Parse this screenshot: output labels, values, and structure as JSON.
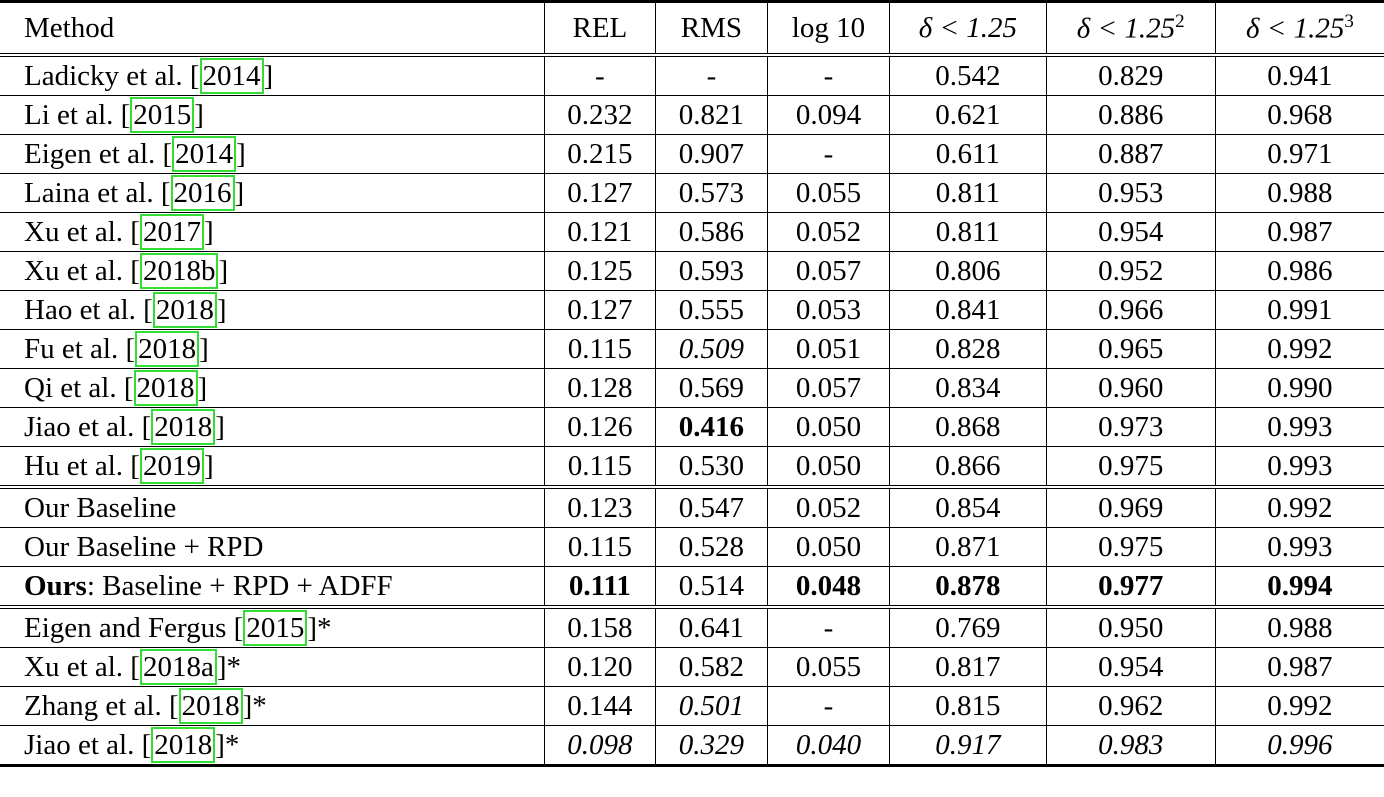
{
  "header": {
    "method": "Method",
    "cols": [
      "REL",
      "RMS",
      "log 10",
      "δ < 1.25",
      "δ < 1.25",
      "δ < 1.25"
    ],
    "sups": [
      "",
      "",
      "",
      "",
      "2",
      "3"
    ]
  },
  "rows": [
    {
      "pre": "",
      "name": "Ladicky et al. [",
      "cite": "2014",
      "post": "]",
      "cells": [
        [
          "-",
          ""
        ],
        [
          "-",
          ""
        ],
        [
          "-",
          ""
        ],
        [
          "0.542",
          ""
        ],
        [
          "0.829",
          ""
        ],
        [
          "0.941",
          ""
        ]
      ]
    },
    {
      "pre": "",
      "name": "Li et al. [",
      "cite": "2015",
      "post": "]",
      "cells": [
        [
          "0.232",
          ""
        ],
        [
          "0.821",
          ""
        ],
        [
          "0.094",
          ""
        ],
        [
          "0.621",
          ""
        ],
        [
          "0.886",
          ""
        ],
        [
          "0.968",
          ""
        ]
      ]
    },
    {
      "pre": "",
      "name": "Eigen et al. [",
      "cite": "2014",
      "post": "]",
      "cells": [
        [
          "0.215",
          ""
        ],
        [
          "0.907",
          ""
        ],
        [
          "-",
          ""
        ],
        [
          "0.611",
          ""
        ],
        [
          "0.887",
          ""
        ],
        [
          "0.971",
          ""
        ]
      ]
    },
    {
      "pre": "",
      "name": "Laina et al. [",
      "cite": "2016",
      "post": "]",
      "cells": [
        [
          "0.127",
          ""
        ],
        [
          "0.573",
          ""
        ],
        [
          "0.055",
          ""
        ],
        [
          "0.811",
          ""
        ],
        [
          "0.953",
          ""
        ],
        [
          "0.988",
          ""
        ]
      ]
    },
    {
      "pre": "",
      "name": "Xu et al. [",
      "cite": "2017",
      "post": "]",
      "cells": [
        [
          "0.121",
          ""
        ],
        [
          "0.586",
          ""
        ],
        [
          "0.052",
          ""
        ],
        [
          "0.811",
          ""
        ],
        [
          "0.954",
          ""
        ],
        [
          "0.987",
          ""
        ]
      ]
    },
    {
      "pre": "",
      "name": "Xu et al. [",
      "cite": "2018b",
      "post": "]",
      "cells": [
        [
          "0.125",
          ""
        ],
        [
          "0.593",
          ""
        ],
        [
          "0.057",
          ""
        ],
        [
          "0.806",
          ""
        ],
        [
          "0.952",
          ""
        ],
        [
          "0.986",
          ""
        ]
      ]
    },
    {
      "pre": "",
      "name": "Hao et al. [",
      "cite": "2018",
      "post": "]",
      "cells": [
        [
          "0.127",
          ""
        ],
        [
          "0.555",
          ""
        ],
        [
          "0.053",
          ""
        ],
        [
          "0.841",
          ""
        ],
        [
          "0.966",
          ""
        ],
        [
          "0.991",
          ""
        ]
      ]
    },
    {
      "pre": "",
      "name": "Fu et al. [",
      "cite": "2018",
      "post": "]",
      "cells": [
        [
          "0.115",
          ""
        ],
        [
          "0.509",
          "i"
        ],
        [
          "0.051",
          ""
        ],
        [
          "0.828",
          ""
        ],
        [
          "0.965",
          ""
        ],
        [
          "0.992",
          ""
        ]
      ]
    },
    {
      "pre": "",
      "name": "Qi et al. [",
      "cite": "2018",
      "post": "]",
      "cells": [
        [
          "0.128",
          ""
        ],
        [
          "0.569",
          ""
        ],
        [
          "0.057",
          ""
        ],
        [
          "0.834",
          ""
        ],
        [
          "0.960",
          ""
        ],
        [
          "0.990",
          ""
        ]
      ]
    },
    {
      "pre": "",
      "name": "Jiao et al. [",
      "cite": "2018",
      "post": "]",
      "cells": [
        [
          "0.126",
          ""
        ],
        [
          "0.416",
          "b"
        ],
        [
          "0.050",
          ""
        ],
        [
          "0.868",
          ""
        ],
        [
          "0.973",
          ""
        ],
        [
          "0.993",
          ""
        ]
      ]
    },
    {
      "pre": "",
      "name": "Hu et al. [",
      "cite": "2019",
      "post": "]",
      "cells": [
        [
          "0.115",
          ""
        ],
        [
          "0.530",
          ""
        ],
        [
          "0.050",
          ""
        ],
        [
          "0.866",
          ""
        ],
        [
          "0.975",
          ""
        ],
        [
          "0.993",
          ""
        ]
      ],
      "gend": true
    },
    {
      "pre": "",
      "name": "Our Baseline",
      "cite": "",
      "post": "",
      "cells": [
        [
          "0.123",
          ""
        ],
        [
          "0.547",
          ""
        ],
        [
          "0.052",
          ""
        ],
        [
          "0.854",
          ""
        ],
        [
          "0.969",
          ""
        ],
        [
          "0.992",
          ""
        ]
      ]
    },
    {
      "pre": "",
      "name": "Our Baseline + RPD",
      "cite": "",
      "post": "",
      "cells": [
        [
          "0.115",
          ""
        ],
        [
          "0.528",
          ""
        ],
        [
          "0.050",
          ""
        ],
        [
          "0.871",
          ""
        ],
        [
          "0.975",
          ""
        ],
        [
          "0.993",
          ""
        ]
      ]
    },
    {
      "pre": "Ours",
      "name": ": Baseline + RPD + ADFF",
      "cite": "",
      "post": "",
      "cells": [
        [
          "0.111",
          "b"
        ],
        [
          "0.514",
          ""
        ],
        [
          "0.048",
          "b"
        ],
        [
          "0.878",
          "b"
        ],
        [
          "0.977",
          "b"
        ],
        [
          "0.994",
          "b"
        ]
      ],
      "gend": true
    },
    {
      "pre": "",
      "name": "Eigen and Fergus [",
      "cite": "2015",
      "post": "]*",
      "cells": [
        [
          "0.158",
          ""
        ],
        [
          "0.641",
          ""
        ],
        [
          "-",
          ""
        ],
        [
          "0.769",
          ""
        ],
        [
          "0.950",
          ""
        ],
        [
          "0.988",
          ""
        ]
      ]
    },
    {
      "pre": "",
      "name": "Xu et al. [",
      "cite": "2018a",
      "post": "]*",
      "cells": [
        [
          "0.120",
          ""
        ],
        [
          "0.582",
          ""
        ],
        [
          "0.055",
          ""
        ],
        [
          "0.817",
          ""
        ],
        [
          "0.954",
          ""
        ],
        [
          "0.987",
          ""
        ]
      ]
    },
    {
      "pre": "",
      "name": "Zhang et al. [",
      "cite": "2018",
      "post": "]*",
      "cells": [
        [
          "0.144",
          ""
        ],
        [
          "0.501",
          "i"
        ],
        [
          "-",
          ""
        ],
        [
          "0.815",
          ""
        ],
        [
          "0.962",
          ""
        ],
        [
          "0.992",
          ""
        ]
      ]
    },
    {
      "pre": "",
      "name": "Jiao et al. [",
      "cite": "2018",
      "post": "]*",
      "cells": [
        [
          "0.098",
          "i"
        ],
        [
          "0.329",
          "i"
        ],
        [
          "0.040",
          "i"
        ],
        [
          "0.917",
          "i"
        ],
        [
          "0.983",
          "i"
        ],
        [
          "0.996",
          "i"
        ]
      ]
    }
  ]
}
